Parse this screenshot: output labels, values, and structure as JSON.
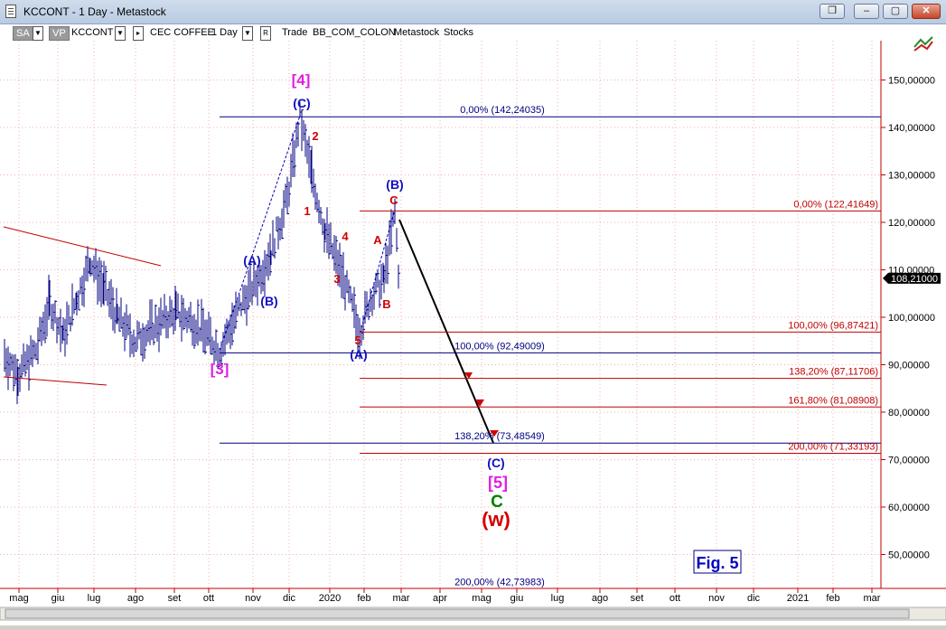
{
  "window": {
    "title": "KCCONT - 1 Day - Metastock",
    "buttons": [
      "restore-group",
      "minimize",
      "maximize",
      "close"
    ]
  },
  "toolbar": {
    "sa": "SA",
    "vp": "VP",
    "symbol": "KCCONT",
    "name": "CEC COFFEE",
    "period": "1 Day",
    "trade": "Trade",
    "tags": "BB_COM_COLON",
    "source": "Metastock",
    "category": "Stocks"
  },
  "price_axis": {
    "ticks": [
      "150,00000",
      "140,00000",
      "130,00000",
      "120,00000",
      "110,00000",
      "100,00000",
      "90,00000",
      "80,00000",
      "70,00000",
      "60,00000",
      "50,00000"
    ],
    "tick_values": [
      150,
      140,
      130,
      120,
      110,
      100,
      90,
      80,
      70,
      60,
      50
    ],
    "last_price": "108,21000",
    "last_value": 108.21
  },
  "time_axis": {
    "labels": [
      "mag",
      "giu",
      "lug",
      "ago",
      "set",
      "ott",
      "nov",
      "dic",
      "2020",
      "feb",
      "mar",
      "apr",
      "mag",
      "giu",
      "lug",
      "ago",
      "set",
      "ott",
      "nov",
      "dic",
      "2021",
      "feb",
      "mar"
    ]
  },
  "fib_levels": [
    {
      "label": "0,00% (142,24035)",
      "value": 142.24035,
      "color": "#000080"
    },
    {
      "label": "0,00% (122,41649)",
      "value": 122.41649,
      "color": "#c00000"
    },
    {
      "label": "100,00% (96,87421)",
      "value": 96.87421,
      "color": "#c00000"
    },
    {
      "label": "100,00% (92,49009)",
      "value": 92.49009,
      "color": "#000080"
    },
    {
      "label": "138,20% (87,11706)",
      "value": 87.11706,
      "color": "#c00000"
    },
    {
      "label": "161,80% (81,08908)",
      "value": 81.08908,
      "color": "#c00000"
    },
    {
      "label": "138,20% (73,48549)",
      "value": 73.48549,
      "color": "#000080"
    },
    {
      "label": "200,00% (71,33193)",
      "value": 71.33193,
      "color": "#c00000"
    },
    {
      "label": "200,00% (42,73983)",
      "value": 42.73983,
      "color": "#000080"
    }
  ],
  "wave_labels": [
    {
      "text": "[4]",
      "color": "#e020e0"
    },
    {
      "text": "(C)",
      "color": "#1010c0"
    },
    {
      "text": "2",
      "color": "#d00000"
    },
    {
      "text": "1",
      "color": "#d00000"
    },
    {
      "text": "4",
      "color": "#d00000"
    },
    {
      "text": "3",
      "color": "#d00000"
    },
    {
      "text": "5",
      "color": "#d00000"
    },
    {
      "text": "(A)",
      "color": "#1010c0"
    },
    {
      "text": "(B)",
      "color": "#1010c0"
    },
    {
      "text": "(A)",
      "color": "#1010c0"
    },
    {
      "text": "(B)",
      "color": "#1010c0"
    },
    {
      "text": "[3]",
      "color": "#e020e0"
    },
    {
      "text": "C",
      "color": "#d00000"
    },
    {
      "text": "A",
      "color": "#d00000"
    },
    {
      "text": "B",
      "color": "#d00000"
    },
    {
      "text": "(C)",
      "color": "#1010c0"
    },
    {
      "text": "[5]",
      "color": "#e020e0"
    },
    {
      "text": "C",
      "color": "#008000"
    },
    {
      "text": "(w)",
      "color": "#d00000"
    }
  ],
  "figure_label": "Fig. 5",
  "colors": {
    "bars": "#000080",
    "axis": "#c00000",
    "grid": "#f0b0b0"
  }
}
